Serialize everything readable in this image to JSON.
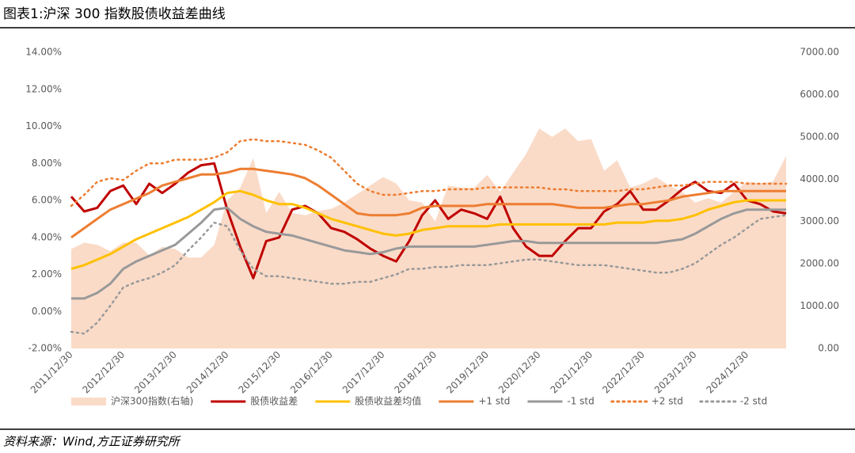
{
  "header": {
    "title": "图表1:沪深 300 指数股债收益差曲线"
  },
  "source": "资料来源：Wind,方正证券研究所",
  "chart_data": {
    "type": "line",
    "categories": [
      "2011/12/30",
      null,
      null,
      null,
      "2012/12/30",
      null,
      null,
      null,
      "2013/12/30",
      null,
      null,
      null,
      "2014/12/30",
      null,
      null,
      null,
      "2015/12/30",
      null,
      null,
      null,
      "2016/12/30",
      null,
      null,
      null,
      "2017/12/30",
      null,
      null,
      null,
      "2018/12/30",
      null,
      null,
      null,
      "2019/12/30",
      null,
      null,
      null,
      "2020/12/30",
      null,
      null,
      null,
      "2021/12/30",
      null,
      null,
      null,
      "2022/12/30",
      null,
      null,
      null,
      "2023/12/30",
      null,
      null,
      null,
      "2024/12/30",
      null,
      null,
      null
    ],
    "ylim": [
      -2,
      14
    ],
    "yticks": [
      {
        "value": -2,
        "label": "-2.00%"
      },
      {
        "value": 0,
        "label": "0.00%"
      },
      {
        "value": 2,
        "label": "2.00%"
      },
      {
        "value": 4,
        "label": "4.00%"
      },
      {
        "value": 6,
        "label": "6.00%"
      },
      {
        "value": 8,
        "label": "8.00%"
      },
      {
        "value": 10,
        "label": "10.00%"
      },
      {
        "value": 12,
        "label": "12.00%"
      },
      {
        "value": 14,
        "label": "14.00%"
      }
    ],
    "y2lim": [
      0,
      7000
    ],
    "y2ticks": [
      {
        "value": 0,
        "label": "0.00"
      },
      {
        "value": 1000,
        "label": "1000.00"
      },
      {
        "value": 2000,
        "label": "2000.00"
      },
      {
        "value": 3000,
        "label": "3000.00"
      },
      {
        "value": 4000,
        "label": "4000.00"
      },
      {
        "value": 5000,
        "label": "5000.00"
      },
      {
        "value": 6000,
        "label": "6000.00"
      },
      {
        "value": 7000,
        "label": "7000.00"
      }
    ],
    "legend": "bottom",
    "series": [
      {
        "name": "沪深300指数(右轴)",
        "color": "#fadbc8",
        "style": "area",
        "axis": "y2",
        "values": [
          2350,
          2500,
          2450,
          2300,
          2500,
          2500,
          2200,
          2400,
          2350,
          2150,
          2150,
          2450,
          3500,
          3800,
          4500,
          3200,
          3700,
          3200,
          3150,
          3250,
          3300,
          3450,
          3650,
          3850,
          4050,
          3900,
          3500,
          3450,
          3000,
          3850,
          3800,
          3800,
          4100,
          3700,
          4150,
          4600,
          5200,
          5000,
          5200,
          4900,
          4950,
          4200,
          4450,
          3800,
          3900,
          4050,
          3850,
          3700,
          3450,
          3550,
          3450,
          3700,
          3950,
          3900,
          3950,
          4550
        ]
      },
      {
        "name": "股债收益差",
        "color": "#c00000",
        "style": "solid",
        "values": [
          6.2,
          5.4,
          5.6,
          6.5,
          6.8,
          5.8,
          6.9,
          6.4,
          6.9,
          7.5,
          7.9,
          8.0,
          5.5,
          3.5,
          1.8,
          3.8,
          4.0,
          5.5,
          5.7,
          5.3,
          4.5,
          4.3,
          3.9,
          3.4,
          3.0,
          2.7,
          3.8,
          5.2,
          6.0,
          5.0,
          5.5,
          5.3,
          5.0,
          6.2,
          4.5,
          3.5,
          3.0,
          3.0,
          3.8,
          4.5,
          4.5,
          5.4,
          5.8,
          6.5,
          5.5,
          5.5,
          6.0,
          6.6,
          7.0,
          6.5,
          6.4,
          6.9,
          6.0,
          5.8,
          5.4,
          5.3
        ]
      },
      {
        "name": "股债收益差均值",
        "color": "#ffc000",
        "style": "solid",
        "values": [
          2.3,
          2.5,
          2.8,
          3.1,
          3.5,
          3.9,
          4.2,
          4.5,
          4.8,
          5.1,
          5.5,
          5.9,
          6.4,
          6.5,
          6.3,
          6.0,
          5.8,
          5.8,
          5.6,
          5.3,
          5.0,
          4.8,
          4.6,
          4.4,
          4.2,
          4.1,
          4.2,
          4.4,
          4.5,
          4.6,
          4.6,
          4.6,
          4.6,
          4.7,
          4.7,
          4.7,
          4.7,
          4.7,
          4.7,
          4.7,
          4.7,
          4.7,
          4.8,
          4.8,
          4.8,
          4.9,
          4.9,
          5.0,
          5.2,
          5.5,
          5.7,
          5.9,
          6.0,
          6.0,
          6.0,
          6.0
        ]
      },
      {
        "name": "+1 std",
        "color": "#ed7d31",
        "style": "solid",
        "values": [
          4.0,
          4.5,
          5.0,
          5.5,
          5.8,
          6.1,
          6.4,
          6.8,
          7.0,
          7.2,
          7.4,
          7.4,
          7.5,
          7.7,
          7.7,
          7.6,
          7.5,
          7.4,
          7.2,
          6.8,
          6.3,
          5.8,
          5.3,
          5.2,
          5.2,
          5.2,
          5.3,
          5.6,
          5.7,
          5.7,
          5.7,
          5.7,
          5.8,
          5.8,
          5.8,
          5.8,
          5.8,
          5.8,
          5.7,
          5.6,
          5.6,
          5.6,
          5.7,
          5.8,
          5.8,
          5.9,
          6.0,
          6.2,
          6.3,
          6.4,
          6.5,
          6.5,
          6.5,
          6.5,
          6.5,
          6.5
        ]
      },
      {
        "name": "-1 std",
        "color": "#999999",
        "style": "solid",
        "values": [
          0.7,
          0.7,
          1.0,
          1.5,
          2.3,
          2.7,
          3.0,
          3.3,
          3.6,
          4.2,
          4.8,
          5.5,
          5.6,
          5.0,
          4.6,
          4.3,
          4.2,
          4.1,
          3.9,
          3.7,
          3.5,
          3.3,
          3.2,
          3.1,
          3.2,
          3.4,
          3.5,
          3.5,
          3.5,
          3.5,
          3.5,
          3.5,
          3.6,
          3.7,
          3.8,
          3.8,
          3.7,
          3.7,
          3.7,
          3.7,
          3.7,
          3.7,
          3.7,
          3.7,
          3.7,
          3.7,
          3.8,
          3.9,
          4.2,
          4.6,
          5.0,
          5.3,
          5.5,
          5.5,
          5.5,
          5.5
        ]
      },
      {
        "name": "+2 std",
        "color": "#ed7d31",
        "style": "dotted",
        "values": [
          5.7,
          6.3,
          7.0,
          7.2,
          7.1,
          7.6,
          8.0,
          8.0,
          8.2,
          8.2,
          8.2,
          8.3,
          8.6,
          9.2,
          9.3,
          9.2,
          9.2,
          9.1,
          9.0,
          8.7,
          8.3,
          7.6,
          6.9,
          6.5,
          6.3,
          6.3,
          6.4,
          6.5,
          6.5,
          6.6,
          6.6,
          6.6,
          6.7,
          6.7,
          6.7,
          6.7,
          6.7,
          6.6,
          6.6,
          6.5,
          6.5,
          6.5,
          6.5,
          6.6,
          6.6,
          6.7,
          6.8,
          6.8,
          6.9,
          7.0,
          7.0,
          7.0,
          6.9,
          6.9,
          6.9,
          6.9
        ]
      },
      {
        "name": "-2 std",
        "color": "#999999",
        "style": "dotted",
        "values": [
          -1.1,
          -1.2,
          -0.6,
          0.3,
          1.3,
          1.6,
          1.8,
          2.1,
          2.5,
          3.3,
          4.0,
          4.8,
          4.6,
          3.3,
          2.3,
          1.9,
          1.9,
          1.8,
          1.7,
          1.6,
          1.5,
          1.5,
          1.6,
          1.6,
          1.8,
          2.0,
          2.3,
          2.3,
          2.4,
          2.4,
          2.5,
          2.5,
          2.5,
          2.6,
          2.7,
          2.8,
          2.8,
          2.7,
          2.6,
          2.5,
          2.5,
          2.5,
          2.4,
          2.3,
          2.2,
          2.1,
          2.1,
          2.3,
          2.6,
          3.1,
          3.6,
          4.0,
          4.5,
          5.0,
          5.1,
          5.2
        ]
      }
    ]
  }
}
